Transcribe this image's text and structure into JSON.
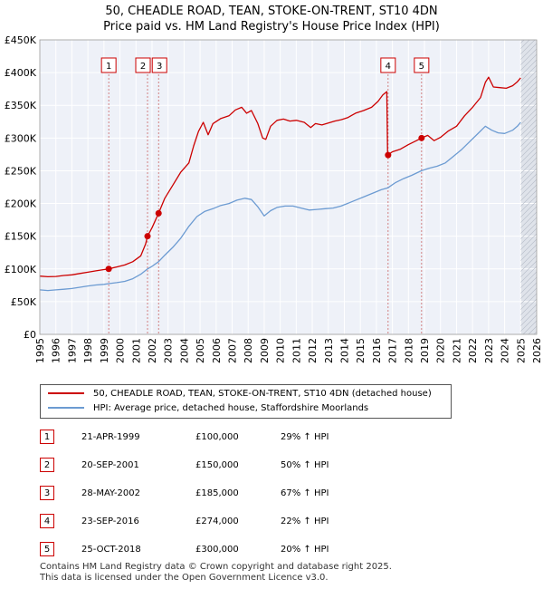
{
  "title_line1": "50, CHEADLE ROAD, TEAN, STOKE-ON-TRENT, ST10 4DN",
  "title_line2": "Price paid vs. HM Land Registry's House Price Index (HPI)",
  "chart_data": {
    "type": "line",
    "title": "50, CHEADLE ROAD, TEAN, STOKE-ON-TRENT, ST10 4DN — Price paid vs. HM Land Registry's House Price Index (HPI)",
    "xlabel": "",
    "ylabel": "",
    "xlim": [
      1995,
      2026
    ],
    "ylim": [
      0,
      450000
    ],
    "grid": true,
    "x_ticks": [
      "1995",
      "1996",
      "1997",
      "1998",
      "1999",
      "2000",
      "2001",
      "2002",
      "2003",
      "2004",
      "2005",
      "2006",
      "2007",
      "2008",
      "2009",
      "2010",
      "2011",
      "2012",
      "2013",
      "2014",
      "2015",
      "2016",
      "2017",
      "2018",
      "2019",
      "2020",
      "2021",
      "2022",
      "2023",
      "2024",
      "2025",
      "2026"
    ],
    "y_ticks": [
      {
        "value": 0,
        "label": "£0"
      },
      {
        "value": 50000,
        "label": "£50K"
      },
      {
        "value": 100000,
        "label": "£100K"
      },
      {
        "value": 150000,
        "label": "£150K"
      },
      {
        "value": 200000,
        "label": "£200K"
      },
      {
        "value": 250000,
        "label": "£250K"
      },
      {
        "value": 300000,
        "label": "£300K"
      },
      {
        "value": 350000,
        "label": "£350K"
      },
      {
        "value": 400000,
        "label": "£400K"
      },
      {
        "value": 450000,
        "label": "£450K"
      }
    ],
    "series": [
      {
        "name": "50, CHEADLE ROAD, TEAN, STOKE-ON-TRENT, ST10 4DN (detached house)",
        "color": "#cc0000",
        "points": [
          [
            1995.0,
            89000
          ],
          [
            1995.5,
            88000
          ],
          [
            1996.0,
            88500
          ],
          [
            1996.5,
            90000
          ],
          [
            1997.0,
            91000
          ],
          [
            1997.5,
            93000
          ],
          [
            1998.0,
            95000
          ],
          [
            1998.5,
            97000
          ],
          [
            1999.0,
            99000
          ],
          [
            1999.3,
            100000
          ],
          [
            1999.8,
            103000
          ],
          [
            2000.3,
            106000
          ],
          [
            2000.8,
            111000
          ],
          [
            2001.3,
            120000
          ],
          [
            2001.6,
            138000
          ],
          [
            2001.72,
            150000
          ],
          [
            2002.0,
            163000
          ],
          [
            2002.41,
            185000
          ],
          [
            2002.8,
            208000
          ],
          [
            2003.3,
            228000
          ],
          [
            2003.8,
            248000
          ],
          [
            2004.3,
            262000
          ],
          [
            2004.6,
            288000
          ],
          [
            2004.9,
            310000
          ],
          [
            2005.2,
            324000
          ],
          [
            2005.5,
            305000
          ],
          [
            2005.8,
            322000
          ],
          [
            2006.3,
            330000
          ],
          [
            2006.8,
            334000
          ],
          [
            2007.2,
            343000
          ],
          [
            2007.6,
            347000
          ],
          [
            2007.9,
            338000
          ],
          [
            2008.2,
            342000
          ],
          [
            2008.6,
            322000
          ],
          [
            2008.9,
            300000
          ],
          [
            2009.1,
            298000
          ],
          [
            2009.4,
            318000
          ],
          [
            2009.8,
            327000
          ],
          [
            2010.2,
            329000
          ],
          [
            2010.6,
            326000
          ],
          [
            2011.0,
            327000
          ],
          [
            2011.5,
            324000
          ],
          [
            2011.9,
            316000
          ],
          [
            2012.2,
            322000
          ],
          [
            2012.6,
            320000
          ],
          [
            2013.0,
            323000
          ],
          [
            2013.4,
            326000
          ],
          [
            2013.8,
            328000
          ],
          [
            2014.2,
            331000
          ],
          [
            2014.7,
            338000
          ],
          [
            2015.2,
            342000
          ],
          [
            2015.7,
            347000
          ],
          [
            2016.1,
            356000
          ],
          [
            2016.4,
            366000
          ],
          [
            2016.65,
            371000
          ],
          [
            2016.7,
            274000
          ],
          [
            2017.0,
            279000
          ],
          [
            2017.5,
            283000
          ],
          [
            2018.0,
            290000
          ],
          [
            2018.5,
            296000
          ],
          [
            2018.81,
            300000
          ],
          [
            2019.2,
            304000
          ],
          [
            2019.6,
            296000
          ],
          [
            2020.0,
            301000
          ],
          [
            2020.5,
            311000
          ],
          [
            2021.0,
            318000
          ],
          [
            2021.5,
            334000
          ],
          [
            2022.0,
            347000
          ],
          [
            2022.5,
            362000
          ],
          [
            2022.8,
            385000
          ],
          [
            2023.0,
            393000
          ],
          [
            2023.3,
            378000
          ],
          [
            2023.7,
            377000
          ],
          [
            2024.1,
            376000
          ],
          [
            2024.5,
            380000
          ],
          [
            2024.8,
            386000
          ],
          [
            2025.0,
            392000
          ]
        ]
      },
      {
        "name": "HPI: Average price, detached house, Staffordshire Moorlands",
        "color": "#6c9bd2",
        "points": [
          [
            1995.0,
            68000
          ],
          [
            1995.5,
            67000
          ],
          [
            1996.0,
            68000
          ],
          [
            1996.5,
            69000
          ],
          [
            1997.0,
            70000
          ],
          [
            1997.5,
            72000
          ],
          [
            1998.0,
            74000
          ],
          [
            1998.5,
            75500
          ],
          [
            1999.0,
            76500
          ],
          [
            1999.3,
            77500
          ],
          [
            1999.8,
            79000
          ],
          [
            2000.3,
            81000
          ],
          [
            2000.8,
            85000
          ],
          [
            2001.3,
            92000
          ],
          [
            2001.72,
            100000
          ],
          [
            2002.0,
            104000
          ],
          [
            2002.41,
            111000
          ],
          [
            2002.8,
            121000
          ],
          [
            2003.3,
            133000
          ],
          [
            2003.8,
            147000
          ],
          [
            2004.3,
            165000
          ],
          [
            2004.8,
            180000
          ],
          [
            2005.3,
            188000
          ],
          [
            2005.8,
            192000
          ],
          [
            2006.3,
            197000
          ],
          [
            2006.8,
            200000
          ],
          [
            2007.3,
            205000
          ],
          [
            2007.8,
            208000
          ],
          [
            2008.2,
            206000
          ],
          [
            2008.6,
            195000
          ],
          [
            2009.0,
            181000
          ],
          [
            2009.4,
            189000
          ],
          [
            2009.8,
            194000
          ],
          [
            2010.3,
            196000
          ],
          [
            2010.8,
            196000
          ],
          [
            2011.3,
            193000
          ],
          [
            2011.8,
            190000
          ],
          [
            2012.3,
            191000
          ],
          [
            2012.8,
            192000
          ],
          [
            2013.3,
            193000
          ],
          [
            2013.8,
            196000
          ],
          [
            2014.3,
            201000
          ],
          [
            2014.8,
            206000
          ],
          [
            2015.3,
            211000
          ],
          [
            2015.8,
            216000
          ],
          [
            2016.3,
            221000
          ],
          [
            2016.72,
            224000
          ],
          [
            2017.2,
            232000
          ],
          [
            2017.7,
            238000
          ],
          [
            2018.2,
            243000
          ],
          [
            2018.81,
            250000
          ],
          [
            2019.3,
            254000
          ],
          [
            2019.8,
            257000
          ],
          [
            2020.3,
            262000
          ],
          [
            2020.8,
            272000
          ],
          [
            2021.3,
            282000
          ],
          [
            2021.8,
            294000
          ],
          [
            2022.3,
            306000
          ],
          [
            2022.8,
            318000
          ],
          [
            2023.2,
            312000
          ],
          [
            2023.6,
            308000
          ],
          [
            2024.0,
            307000
          ],
          [
            2024.5,
            312000
          ],
          [
            2024.8,
            318000
          ],
          [
            2025.0,
            324000
          ]
        ]
      }
    ],
    "sales": [
      {
        "label": "1",
        "x": 1999.3,
        "price": 100000
      },
      {
        "label": "2",
        "x": 2001.72,
        "price": 150000
      },
      {
        "label": "3",
        "x": 2002.41,
        "price": 185000
      },
      {
        "label": "4",
        "x": 2016.73,
        "price": 274000
      },
      {
        "label": "5",
        "x": 2018.82,
        "price": 300000
      }
    ],
    "future_shade_from": 2025.0
  },
  "legend": {
    "property_label": "50, CHEADLE ROAD, TEAN, STOKE-ON-TRENT, ST10 4DN (detached house)",
    "hpi_label": "HPI: Average price, detached house, Staffordshire Moorlands",
    "property_color": "#cc0000",
    "hpi_color": "#6c9bd2"
  },
  "table": {
    "rows": [
      {
        "num": "1",
        "date": "21-APR-1999",
        "price": "£100,000",
        "hpi": "29% ↑ HPI"
      },
      {
        "num": "2",
        "date": "20-SEP-2001",
        "price": "£150,000",
        "hpi": "50% ↑ HPI"
      },
      {
        "num": "3",
        "date": "28-MAY-2002",
        "price": "£185,000",
        "hpi": "67% ↑ HPI"
      },
      {
        "num": "4",
        "date": "23-SEP-2016",
        "price": "£274,000",
        "hpi": "22% ↑ HPI"
      },
      {
        "num": "5",
        "date": "25-OCT-2018",
        "price": "£300,000",
        "hpi": "20% ↑ HPI"
      }
    ]
  },
  "footer": {
    "line1": "Contains HM Land Registry data © Crown copyright and database right 2025.",
    "line2": "This data is licensed under the Open Government Licence v3.0."
  }
}
